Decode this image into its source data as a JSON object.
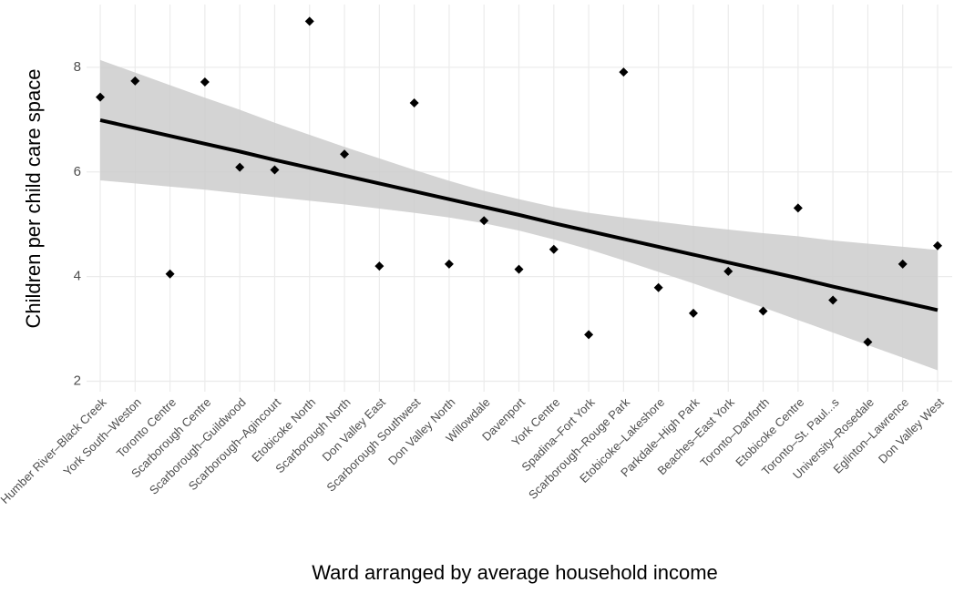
{
  "chart_data": {
    "type": "scatter",
    "x_label": "Ward arranged by average household income",
    "y_label": "Children per child care space",
    "categories": [
      "Humber River–Black Creek",
      "York South–Weston",
      "Toronto Centre",
      "Scarborough Centre",
      "Scarborough–Guildwood",
      "Scarborough–Agincourt",
      "Etobicoke North",
      "Scarborough North",
      "Don Valley East",
      "Scarborough Southwest",
      "Don Valley North",
      "Willowdale",
      "Davenport",
      "York Centre",
      "Spadina–Fort York",
      "Scarborough–Rouge Park",
      "Etobicoke–Lakeshore",
      "Parkdale–High Park",
      "Beaches–East York",
      "Toronto–Danforth",
      "Etobicoke Centre",
      "Toronto–St. Paul...s",
      "University–Rosedale",
      "Eglinton–Lawrence",
      "Don Valley West"
    ],
    "values": [
      7.43,
      7.74,
      4.05,
      7.72,
      6.09,
      6.04,
      8.88,
      6.34,
      4.2,
      7.32,
      4.24,
      5.07,
      4.14,
      4.52,
      2.89,
      7.91,
      3.79,
      3.3,
      4.1,
      3.34,
      5.31,
      3.55,
      2.75,
      4.24,
      4.59
    ],
    "fit": [
      6.99,
      6.84,
      6.69,
      6.54,
      6.39,
      6.23,
      6.08,
      5.93,
      5.78,
      5.63,
      5.48,
      5.33,
      5.18,
      5.02,
      4.87,
      4.72,
      4.57,
      4.42,
      4.27,
      4.12,
      3.97,
      3.81,
      3.66,
      3.51,
      3.36
    ],
    "fit_upper": [
      8.14,
      7.9,
      7.66,
      7.42,
      7.19,
      6.94,
      6.71,
      6.48,
      6.26,
      6.04,
      5.83,
      5.64,
      5.48,
      5.33,
      5.22,
      5.13,
      5.05,
      4.97,
      4.9,
      4.83,
      4.77,
      4.69,
      4.63,
      4.57,
      4.51
    ],
    "fit_lower": [
      5.84,
      5.78,
      5.72,
      5.66,
      5.59,
      5.52,
      5.45,
      5.38,
      5.3,
      5.22,
      5.13,
      5.02,
      4.88,
      4.71,
      4.52,
      4.31,
      4.09,
      3.87,
      3.64,
      3.41,
      3.17,
      2.93,
      2.69,
      2.45,
      2.21
    ],
    "color": "#000000",
    "band_color": "#cccccc",
    "ylim": [
      1.8,
      9.2
    ],
    "yticks": [
      2,
      4,
      6,
      8
    ],
    "grid": true
  }
}
